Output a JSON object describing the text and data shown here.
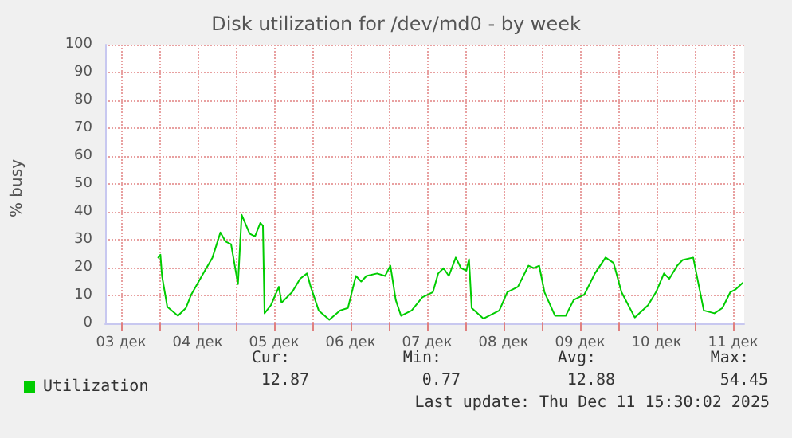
{
  "chart_data": {
    "type": "line",
    "title": "Disk utilization for /dev/md0 - by week",
    "ylabel": "% busy",
    "xlim": [
      "2025-12-03T07:00",
      "2025-12-11T15:30"
    ],
    "xticks": [
      {
        "value": "2025-12-03T12:00",
        "label": "03 дек"
      },
      {
        "value": "2025-12-04T00:00",
        "label": null
      },
      {
        "value": "2025-12-04T12:00",
        "label": "04 дек"
      },
      {
        "value": "2025-12-05T00:00",
        "label": null
      },
      {
        "value": "2025-12-05T12:00",
        "label": "05 дек"
      },
      {
        "value": "2025-12-06T00:00",
        "label": null
      },
      {
        "value": "2025-12-06T12:00",
        "label": "06 дек"
      },
      {
        "value": "2025-12-07T00:00",
        "label": null
      },
      {
        "value": "2025-12-07T12:00",
        "label": "07 дек"
      },
      {
        "value": "2025-12-08T00:00",
        "label": null
      },
      {
        "value": "2025-12-08T12:00",
        "label": "08 дек"
      },
      {
        "value": "2025-12-09T00:00",
        "label": null
      },
      {
        "value": "2025-12-09T12:00",
        "label": "09 дек"
      },
      {
        "value": "2025-12-10T00:00",
        "label": null
      },
      {
        "value": "2025-12-10T12:00",
        "label": "10 дек"
      },
      {
        "value": "2025-12-11T00:00",
        "label": null
      },
      {
        "value": "2025-12-11T12:00",
        "label": "11 дек"
      }
    ],
    "ylim": [
      0,
      100
    ],
    "yticks": [
      0,
      10,
      20,
      30,
      40,
      50,
      60,
      70,
      80,
      90,
      100
    ],
    "grid": true,
    "legend": "bottom left",
    "marker": "none",
    "line_style": "solid",
    "x": [
      "2025-12-03T23:40",
      "2025-12-04T00:20",
      "2025-12-04T00:50",
      "2025-12-04T02:30",
      "2025-12-04T05:50",
      "2025-12-04T08:20",
      "2025-12-04T10:00",
      "2025-12-04T13:20",
      "2025-12-04T16:40",
      "2025-12-04T19:10",
      "2025-12-04T20:50",
      "2025-12-04T22:30",
      "2025-12-05T00:40",
      "2025-12-05T01:50",
      "2025-12-05T04:20",
      "2025-12-05T06:00",
      "2025-12-05T07:40",
      "2025-12-05T08:30",
      "2025-12-05T09:00",
      "2025-12-05T11:00",
      "2025-12-05T13:30",
      "2025-12-05T14:20",
      "2025-12-05T17:40",
      "2025-12-05T20:10",
      "2025-12-05T22:20",
      "2025-12-05T23:30",
      "2025-12-06T02:00",
      "2025-12-06T05:20",
      "2025-12-06T08:40",
      "2025-12-06T11:10",
      "2025-12-06T13:40",
      "2025-12-06T15:20",
      "2025-12-06T17:00",
      "2025-12-06T20:20",
      "2025-12-06T22:50",
      "2025-12-07T00:30",
      "2025-12-07T02:10",
      "2025-12-07T03:50",
      "2025-12-07T07:10",
      "2025-12-07T10:30",
      "2025-12-07T13:50",
      "2025-12-07T15:30",
      "2025-12-07T17:10",
      "2025-12-07T18:50",
      "2025-12-07T21:00",
      "2025-12-07T22:40",
      "2025-12-08T00:20",
      "2025-12-08T01:10",
      "2025-12-08T02:00",
      "2025-12-08T05:40",
      "2025-12-08T10:40",
      "2025-12-08T13:10",
      "2025-12-08T16:30",
      "2025-12-08T19:50",
      "2025-12-08T21:30",
      "2025-12-08T23:10",
      "2025-12-09T00:50",
      "2025-12-09T04:10",
      "2025-12-09T07:30",
      "2025-12-09T10:00",
      "2025-12-09T13:20",
      "2025-12-09T16:40",
      "2025-12-09T20:00",
      "2025-12-09T22:30",
      "2025-12-10T01:00",
      "2025-12-10T05:10",
      "2025-12-10T09:20",
      "2025-12-10T11:50",
      "2025-12-10T14:20",
      "2025-12-10T16:00",
      "2025-12-10T18:30",
      "2025-12-10T20:10",
      "2025-12-10T23:30",
      "2025-12-11T02:50",
      "2025-12-11T06:10",
      "2025-12-11T08:40",
      "2025-12-11T11:10",
      "2025-12-11T12:50",
      "2025-12-11T15:00"
    ],
    "series": [
      {
        "name": "Utilization",
        "color": "#00cc00",
        "values": [
          23.6,
          24.6,
          17,
          5.9,
          2.7,
          5.5,
          10.3,
          17,
          23.6,
          32.6,
          29.3,
          28.4,
          14.1,
          38.9,
          32.2,
          31.2,
          36,
          35,
          3.6,
          6.5,
          13.1,
          7.4,
          11.2,
          16,
          17.9,
          13.1,
          4.6,
          1.3,
          4.6,
          5.5,
          17,
          15,
          17,
          17.9,
          17,
          20.7,
          8.4,
          2.7,
          4.6,
          9.3,
          11.2,
          17.9,
          19.8,
          17,
          23.6,
          19.8,
          18.9,
          23,
          5.5,
          1.7,
          4.6,
          11.2,
          13.1,
          20.7,
          19.8,
          20.7,
          11.2,
          2.7,
          2.7,
          8.4,
          10.3,
          17.9,
          23.6,
          21.7,
          11.2,
          2.1,
          6.5,
          11.2,
          17.9,
          16,
          20.7,
          22.7,
          23.6,
          4.6,
          3.6,
          5.5,
          11.2,
          12.2,
          14.5
        ]
      }
    ],
    "annotations": [
      "Cur:",
      "12.87",
      "Min:",
      "0.77",
      "Avg:",
      "12.88",
      "Max:",
      "54.45",
      "Last update: Thu Dec 11 15:30:02 2025"
    ]
  }
}
